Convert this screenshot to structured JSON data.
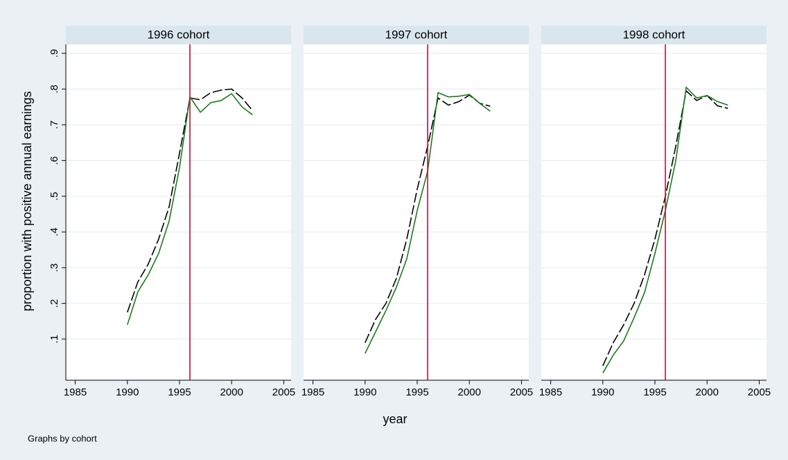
{
  "chart_data": [
    {
      "type": "line",
      "title": "1996 cohort",
      "vline": 1996,
      "vline_color": "#b0123c",
      "x": [
        1990,
        1991,
        1992,
        1993,
        1994,
        1995,
        1996,
        1997,
        1998,
        1999,
        2000,
        2001,
        2002
      ],
      "series": [
        {
          "color": "#000000",
          "dash": true,
          "values": [
            0.175,
            0.26,
            0.31,
            0.38,
            0.47,
            0.62,
            0.775,
            0.77,
            0.79,
            0.797,
            0.8,
            0.775,
            0.74
          ]
        },
        {
          "color": "#1a7a1a",
          "dash": false,
          "values": [
            0.14,
            0.232,
            0.28,
            0.34,
            0.43,
            0.58,
            0.778,
            0.735,
            0.762,
            0.768,
            0.787,
            0.75,
            0.728
          ]
        }
      ],
      "xlim": [
        1984.1,
        2005.7
      ],
      "xticks": [
        1985,
        1990,
        1995,
        2000,
        2005
      ],
      "ylim": [
        -0.015,
        0.925
      ],
      "yticks": [
        {
          "value": 0.1,
          "label": ".1"
        },
        {
          "value": 0.2,
          "label": ".2"
        },
        {
          "value": 0.3,
          "label": ".3"
        },
        {
          "value": 0.4,
          "label": ".4"
        },
        {
          "value": 0.5,
          "label": ".5"
        },
        {
          "value": 0.6,
          "label": ".6"
        },
        {
          "value": 0.7,
          "label": ".7"
        },
        {
          "value": 0.8,
          "label": ".8"
        },
        {
          "value": 0.9,
          "label": ".9"
        }
      ],
      "grid": true
    },
    {
      "type": "line",
      "title": "1997 cohort",
      "vline": 1996,
      "vline_color": "#b0123c",
      "x": [
        1990,
        1991,
        1992,
        1993,
        1994,
        1995,
        1996,
        1997,
        1998,
        1999,
        2000,
        2001,
        2002
      ],
      "series": [
        {
          "color": "#000000",
          "dash": true,
          "values": [
            0.09,
            0.155,
            0.2,
            0.27,
            0.38,
            0.52,
            0.64,
            0.775,
            0.755,
            0.765,
            0.783,
            0.76,
            0.752
          ]
        },
        {
          "color": "#1a7a1a",
          "dash": false,
          "values": [
            0.06,
            0.12,
            0.18,
            0.245,
            0.325,
            0.46,
            0.57,
            0.79,
            0.778,
            0.78,
            0.785,
            0.76,
            0.738
          ]
        }
      ],
      "xlim": [
        1984.1,
        2005.7
      ],
      "xticks": [
        1985,
        1990,
        1995,
        2000,
        2005
      ],
      "ylim": [
        -0.015,
        0.925
      ],
      "grid": true
    },
    {
      "type": "line",
      "title": "1998 cohort",
      "vline": 1996,
      "vline_color": "#b0123c",
      "x": [
        1990,
        1991,
        1992,
        1993,
        1994,
        1995,
        1996,
        1997,
        1998,
        1999,
        2000,
        2001,
        2002
      ],
      "series": [
        {
          "color": "#000000",
          "dash": true,
          "values": [
            0.025,
            0.09,
            0.14,
            0.2,
            0.28,
            0.38,
            0.5,
            0.64,
            0.795,
            0.768,
            0.782,
            0.753,
            0.746
          ]
        },
        {
          "color": "#1a7a1a",
          "dash": false,
          "values": [
            0.005,
            0.055,
            0.095,
            0.16,
            0.23,
            0.34,
            0.46,
            0.6,
            0.805,
            0.775,
            0.782,
            0.765,
            0.755
          ]
        }
      ],
      "xlim": [
        1984.1,
        2005.7
      ],
      "xticks": [
        1985,
        1990,
        1995,
        2000,
        2005
      ],
      "ylim": [
        -0.015,
        0.925
      ],
      "grid": true
    }
  ],
  "ylabel": "proportion with positive annual earnings",
  "xlabel": "year",
  "note": "Graphs by cohort"
}
